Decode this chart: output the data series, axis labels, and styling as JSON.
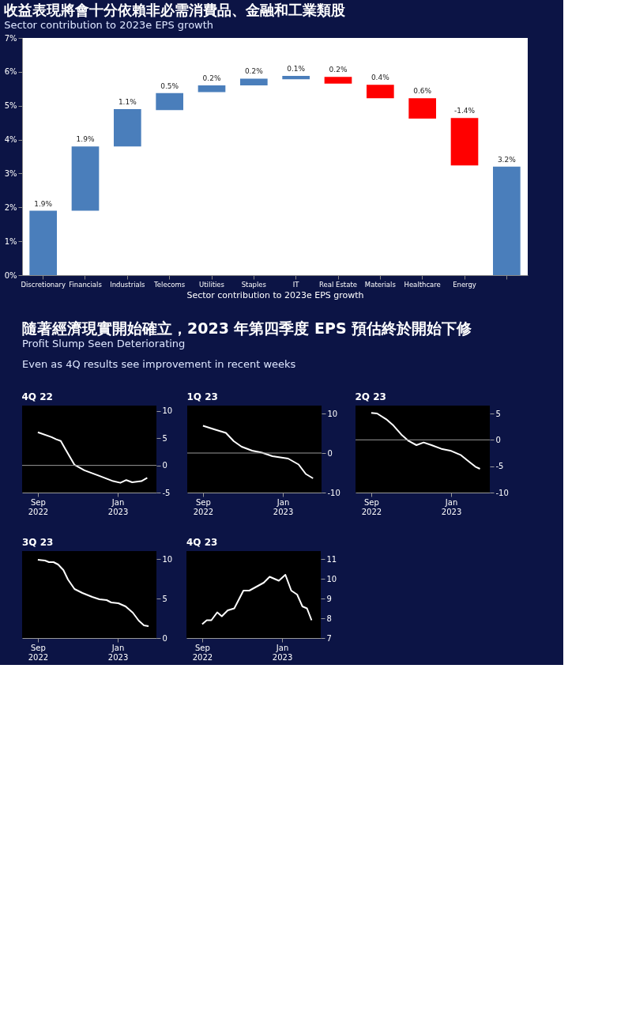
{
  "chart_data": [
    {
      "type": "bar",
      "title": "收益表現將會十分依賴非必需消費品、金融和工業類股",
      "subtitle": "Sector contribution to 2023e EPS growth",
      "xlabel": "Sector contribution to 2023e EPS growth",
      "categories": [
        "Discretionary",
        "Financials",
        "Industrials",
        "Telecoms",
        "Utilities",
        "Staples",
        "IT",
        "Real Estate",
        "Materials",
        "Healthcare",
        "Energy",
        null
      ],
      "values": [
        1.9,
        1.9,
        1.1,
        0.5,
        0.2,
        0.2,
        0.1,
        -0.2,
        -0.4,
        -0.6,
        -1.4,
        3.2
      ],
      "base": [
        0,
        1.9,
        3.8,
        4.87,
        5.4,
        5.6,
        5.78,
        5.85,
        5.62,
        5.22,
        4.64,
        0
      ],
      "colors": [
        "#4a7ebb",
        "#4a7ebb",
        "#4a7ebb",
        "#4a7ebb",
        "#4a7ebb",
        "#4a7ebb",
        "#4a7ebb",
        "#ff0000",
        "#ff0000",
        "#ff0000",
        "#ff0000",
        "#4a7ebb"
      ],
      "value_labels": [
        "1.9%",
        "1.9%",
        "1.1%",
        "0.5%",
        "0.2%",
        "0.2%",
        "0.1%",
        "0.2%",
        "0.4%",
        "0.6%",
        "-1.4%",
        "3.2%"
      ],
      "ylim": [
        0,
        7
      ],
      "yticks": [
        {
          "value": 0,
          "label": "0%"
        },
        {
          "value": 1,
          "label": "1%"
        },
        {
          "value": 2,
          "label": "2%"
        },
        {
          "value": 3,
          "label": "3%"
        },
        {
          "value": 4,
          "label": "4%"
        },
        {
          "value": 5,
          "label": "5%"
        },
        {
          "value": 6,
          "label": "6%"
        },
        {
          "value": 7,
          "label": "7%"
        }
      ]
    },
    {
      "type": "other",
      "title": "隨著經濟現實開始確立，2023 年第四季度 EPS 預估終於開始下修",
      "subtitle": "Profit Slump Seen Deteriorating",
      "annotations": [
        "Even as 4Q results see improvement in recent weeks"
      ]
    },
    {
      "type": "line",
      "title": "4Q 22",
      "x": [
        "2022-09-01",
        "2022-09-22",
        "2022-09-29",
        "2022-10-06",
        "2022-10-13",
        "2022-10-27",
        "2022-11-11",
        "2022-12-03",
        "2022-12-25",
        "2023-01-05",
        "2023-01-14",
        "2023-01-23",
        "2023-02-06",
        "2023-02-15"
      ],
      "series": [
        {
          "color": "#ffffff",
          "values": [
            6.1,
            5.2,
            4.8,
            4.5,
            3.0,
            0.1,
            -0.9,
            -1.9,
            -2.9,
            -3.2,
            -2.7,
            -3.1,
            -2.9,
            -2.3
          ]
        }
      ],
      "xlim": [
        "2022-08-08",
        "2023-03-01"
      ],
      "xticks": [
        {
          "value": "2022-09-01",
          "label": "Sep\n2022"
        },
        {
          "value": "2023-01-01",
          "label": "Jan\n2023"
        }
      ],
      "ylim": [
        -5,
        11
      ],
      "yticks": [
        -5,
        0,
        5,
        10
      ],
      "ref_lines": [
        {
          "axis": "y",
          "value": 0,
          "color": "#999999"
        }
      ]
    },
    {
      "type": "line",
      "title": "1Q 23",
      "x": [
        "2022-09-01",
        "2022-09-20",
        "2022-10-06",
        "2022-10-18",
        "2022-10-30",
        "2022-11-15",
        "2022-11-30",
        "2022-12-16",
        "2023-01-09",
        "2023-01-25",
        "2023-02-05",
        "2023-02-16"
      ],
      "series": [
        {
          "color": "#ffffff",
          "values": [
            6.9,
            5.9,
            5.1,
            3.0,
            1.6,
            0.6,
            0.1,
            -0.8,
            -1.4,
            -2.9,
            -5.3,
            -6.4
          ]
        }
      ],
      "xlim": [
        "2022-08-08",
        "2023-03-01"
      ],
      "xticks": [
        {
          "value": "2022-09-01",
          "label": "Sep\n2022"
        },
        {
          "value": "2023-01-01",
          "label": "Jan\n2023"
        }
      ],
      "ylim": [
        -10,
        12
      ],
      "yticks": [
        -10,
        0,
        10
      ],
      "ref_lines": [
        {
          "axis": "y",
          "value": 0,
          "color": "#999999"
        }
      ]
    },
    {
      "type": "line",
      "title": "2Q 23",
      "x": [
        "2022-09-01",
        "2022-09-10",
        "2022-09-24",
        "2022-10-05",
        "2022-10-17",
        "2022-10-28",
        "2022-11-09",
        "2022-11-20",
        "2022-12-02",
        "2022-12-17",
        "2023-01-01",
        "2023-01-16",
        "2023-01-28",
        "2023-02-07",
        "2023-02-14"
      ],
      "series": [
        {
          "color": "#ffffff",
          "values": [
            5.1,
            5.0,
            3.9,
            2.7,
            1.0,
            -0.2,
            -1.0,
            -0.5,
            -1.0,
            -1.7,
            -2.1,
            -2.9,
            -4.1,
            -5.1,
            -5.5
          ]
        }
      ],
      "xlim": [
        "2022-08-08",
        "2023-03-01"
      ],
      "xticks": [
        {
          "value": "2022-09-01",
          "label": "Sep\n2022"
        },
        {
          "value": "2023-01-01",
          "label": "Jan\n2023"
        }
      ],
      "ylim": [
        -10,
        6.5
      ],
      "yticks": [
        -10,
        -5,
        0,
        5
      ],
      "ref_lines": [
        {
          "axis": "y",
          "value": 0,
          "color": "#999999"
        }
      ]
    },
    {
      "type": "line",
      "title": "3Q 23",
      "x": [
        "2022-09-01",
        "2022-09-12",
        "2022-09-18",
        "2022-09-25",
        "2022-10-02",
        "2022-10-10",
        "2022-10-17",
        "2022-10-27",
        "2022-11-08",
        "2022-11-23",
        "2022-12-04",
        "2022-12-15",
        "2022-12-22",
        "2023-01-02",
        "2023-01-13",
        "2023-01-24",
        "2023-02-02",
        "2023-02-10",
        "2023-02-17"
      ],
      "series": [
        {
          "color": "#ffffff",
          "values": [
            9.9,
            9.8,
            9.6,
            9.6,
            9.3,
            8.6,
            7.4,
            6.2,
            5.7,
            5.2,
            4.9,
            4.8,
            4.5,
            4.4,
            4.0,
            3.2,
            2.2,
            1.6,
            1.5
          ]
        }
      ],
      "xlim": [
        "2022-08-08",
        "2023-03-01"
      ],
      "xticks": [
        {
          "value": "2022-09-01",
          "label": "Sep\n2022"
        },
        {
          "value": "2023-01-01",
          "label": "Jan\n2023"
        }
      ],
      "ylim": [
        0,
        11
      ],
      "yticks": [
        0,
        5,
        10
      ]
    },
    {
      "type": "line",
      "title": "4Q 23",
      "x": [
        "2022-09-01",
        "2022-09-08",
        "2022-09-15",
        "2022-09-24",
        "2022-10-01",
        "2022-10-10",
        "2022-10-20",
        "2022-11-03",
        "2022-11-12",
        "2022-11-23",
        "2022-12-04",
        "2022-12-13",
        "2022-12-20",
        "2022-12-27",
        "2023-01-06",
        "2023-01-15",
        "2023-01-24",
        "2023-02-01",
        "2023-02-08",
        "2023-02-15"
      ],
      "series": [
        {
          "color": "#ffffff",
          "values": [
            7.7,
            7.9,
            7.9,
            8.3,
            8.1,
            8.4,
            8.5,
            9.4,
            9.4,
            9.6,
            9.8,
            10.1,
            10.0,
            9.9,
            10.2,
            9.4,
            9.2,
            8.6,
            8.5,
            7.9
          ]
        }
      ],
      "xlim": [
        "2022-08-08",
        "2023-03-01"
      ],
      "xticks": [
        {
          "value": "2022-09-01",
          "label": "Sep\n2022"
        },
        {
          "value": "2023-01-01",
          "label": "Jan\n2023"
        }
      ],
      "ylim": [
        7,
        11.4
      ],
      "yticks": [
        7,
        8,
        9,
        10,
        11
      ]
    }
  ]
}
